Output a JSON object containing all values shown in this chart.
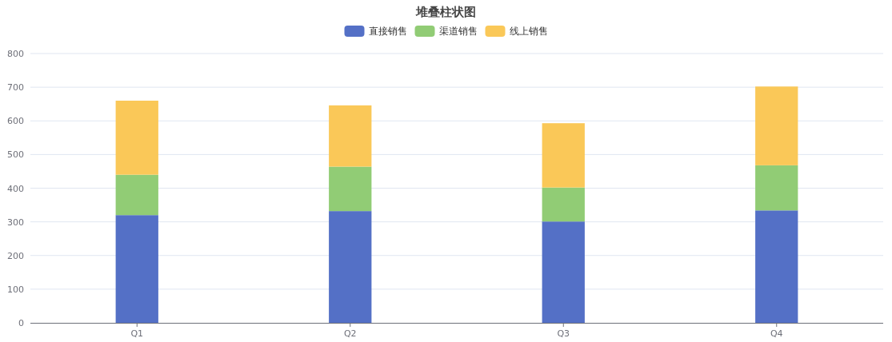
{
  "chart_data": {
    "type": "bar",
    "title": "堆叠柱状图",
    "stacked": true,
    "legend": "top",
    "grid": "y",
    "categories": [
      "Q1",
      "Q2",
      "Q3",
      "Q4"
    ],
    "ylim": [
      0,
      800
    ],
    "yticks": [
      0,
      100,
      200,
      300,
      400,
      500,
      600,
      700,
      800
    ],
    "series": [
      {
        "name": "直接销售",
        "color": "#5470c6",
        "values": [
          320,
          332,
          301,
          334
        ]
      },
      {
        "name": "渠道销售",
        "color": "#91cc75",
        "values": [
          120,
          132,
          101,
          134
        ]
      },
      {
        "name": "线上销售",
        "color": "#fac858",
        "values": [
          220,
          182,
          191,
          234
        ]
      }
    ]
  }
}
